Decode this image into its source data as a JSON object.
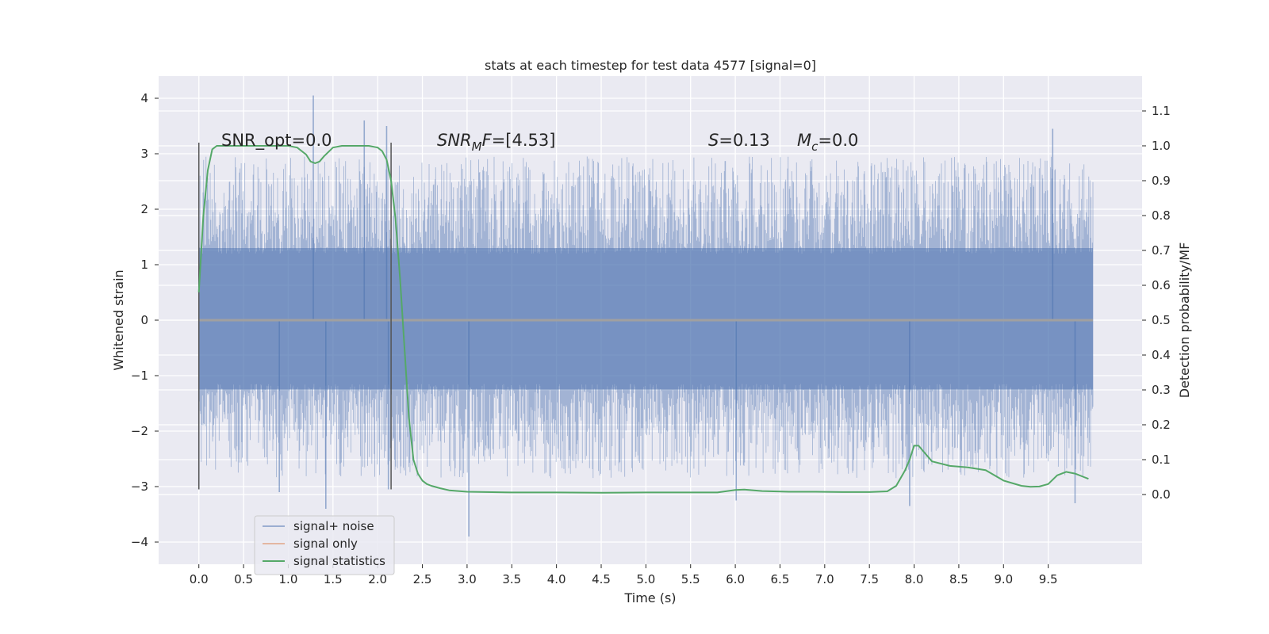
{
  "chart_data": {
    "type": "line",
    "title": "stats at each timestep for test data 4577 [signal=0]",
    "xlabel": "Time (s)",
    "ylabel": "Whitened strain",
    "y2label": "Detection probability/MF",
    "xlim": [
      -0.45,
      10.55
    ],
    "ylim": [
      -4.4,
      4.4
    ],
    "y2lim": [
      -0.2,
      1.2
    ],
    "x_ticks": [
      0.0,
      0.5,
      1.0,
      1.5,
      2.0,
      2.5,
      3.0,
      3.5,
      4.0,
      4.5,
      5.0,
      5.5,
      6.0,
      6.5,
      7.0,
      7.5,
      8.0,
      8.5,
      9.0,
      9.5
    ],
    "x_tick_labels": [
      "0.0",
      "0.5",
      "1.0",
      "1.5",
      "2.0",
      "2.5",
      "3.0",
      "3.5",
      "4.0",
      "4.5",
      "5.0",
      "5.5",
      "6.0",
      "6.5",
      "7.0",
      "7.5",
      "8.0",
      "8.5",
      "9.0",
      "9.5"
    ],
    "y_ticks": [
      -4,
      -3,
      -2,
      -1,
      0,
      1,
      2,
      3,
      4
    ],
    "y_tick_labels": [
      "−4",
      "−3",
      "−2",
      "−1",
      "0",
      "1",
      "2",
      "3",
      "4"
    ],
    "y2_ticks": [
      0.0,
      0.1,
      0.2,
      0.3,
      0.4,
      0.5,
      0.6,
      0.7,
      0.8,
      0.9,
      1.0,
      1.1
    ],
    "y2_tick_labels": [
      "0.0",
      "0.1",
      "0.2",
      "0.3",
      "0.4",
      "0.5",
      "0.6",
      "0.7",
      "0.8",
      "0.9",
      "1.0",
      "1.1"
    ],
    "grid": true,
    "legend_position": "lower-left",
    "series": [
      {
        "name": "signal+ noise",
        "color": "#4c72b0",
        "axis": "left",
        "kind": "noise",
        "x_range": [
          0.0,
          10.0
        ],
        "band": [
          -1.25,
          1.3
        ],
        "spike_range": [
          -3.9,
          4.0
        ]
      },
      {
        "name": "signal only",
        "color": "#dd8452",
        "axis": "left",
        "x": [
          0.0,
          10.0
        ],
        "y": [
          0.0,
          0.0
        ]
      },
      {
        "name": "signal statistics",
        "color": "#55a868",
        "axis": "right",
        "x": [
          0.0,
          0.05,
          0.1,
          0.15,
          0.2,
          0.3,
          0.5,
          0.8,
          1.0,
          1.1,
          1.2,
          1.25,
          1.3,
          1.35,
          1.4,
          1.5,
          1.6,
          1.8,
          1.9,
          2.0,
          2.05,
          2.1,
          2.15,
          2.2,
          2.25,
          2.3,
          2.35,
          2.4,
          2.45,
          2.5,
          2.55,
          2.6,
          2.7,
          2.8,
          3.0,
          3.5,
          4.0,
          4.5,
          5.0,
          5.5,
          5.8,
          6.0,
          6.1,
          6.3,
          6.6,
          6.9,
          7.2,
          7.5,
          7.7,
          7.8,
          7.9,
          7.95,
          8.0,
          8.05,
          8.1,
          8.2,
          8.4,
          8.6,
          8.8,
          9.0,
          9.2,
          9.3,
          9.4,
          9.5,
          9.6,
          9.7,
          9.8,
          9.9,
          9.95
        ],
        "y": [
          0.58,
          0.8,
          0.93,
          0.99,
          1.0,
          1.0,
          1.0,
          1.0,
          1.0,
          0.995,
          0.975,
          0.955,
          0.95,
          0.955,
          0.97,
          0.995,
          1.0,
          1.0,
          1.0,
          0.995,
          0.985,
          0.96,
          0.9,
          0.79,
          0.62,
          0.42,
          0.22,
          0.1,
          0.06,
          0.04,
          0.03,
          0.025,
          0.018,
          0.012,
          0.008,
          0.006,
          0.006,
          0.005,
          0.006,
          0.006,
          0.006,
          0.013,
          0.014,
          0.01,
          0.008,
          0.008,
          0.007,
          0.007,
          0.009,
          0.025,
          0.07,
          0.1,
          0.14,
          0.14,
          0.125,
          0.095,
          0.082,
          0.078,
          0.07,
          0.04,
          0.025,
          0.022,
          0.023,
          0.03,
          0.055,
          0.065,
          0.06,
          0.05,
          0.045
        ]
      }
    ],
    "vertical_lines": [
      {
        "x": 0.0,
        "y_range": [
          -3.05,
          3.2
        ],
        "color": "#555555"
      },
      {
        "x": 2.15,
        "y_range": [
          -3.05,
          3.2
        ],
        "color": "#555555"
      }
    ],
    "annotations": {
      "snr_opt": "SNR_opt=0.0",
      "snr_mf_label": "SNR",
      "snr_mf_sub": "M",
      "snr_mf_tail": "F",
      "snr_mf_value": "=[4.53]",
      "s_label": "S",
      "s_value": "=0.13",
      "mc_label": "M",
      "mc_sub": "c",
      "mc_value": "=0.0"
    },
    "extreme_spikes": [
      {
        "x": 0.0,
        "y": -3.05
      },
      {
        "x": 0.9,
        "y": -3.1
      },
      {
        "x": 1.28,
        "y": 4.05
      },
      {
        "x": 1.42,
        "y": -3.4
      },
      {
        "x": 1.85,
        "y": 3.6
      },
      {
        "x": 2.1,
        "y": 3.5
      },
      {
        "x": 2.12,
        "y": -3.05
      },
      {
        "x": 3.02,
        "y": -3.9
      },
      {
        "x": 6.01,
        "y": -3.25
      },
      {
        "x": 7.95,
        "y": -3.35
      },
      {
        "x": 9.55,
        "y": 3.45
      },
      {
        "x": 9.8,
        "y": -3.3
      }
    ]
  }
}
